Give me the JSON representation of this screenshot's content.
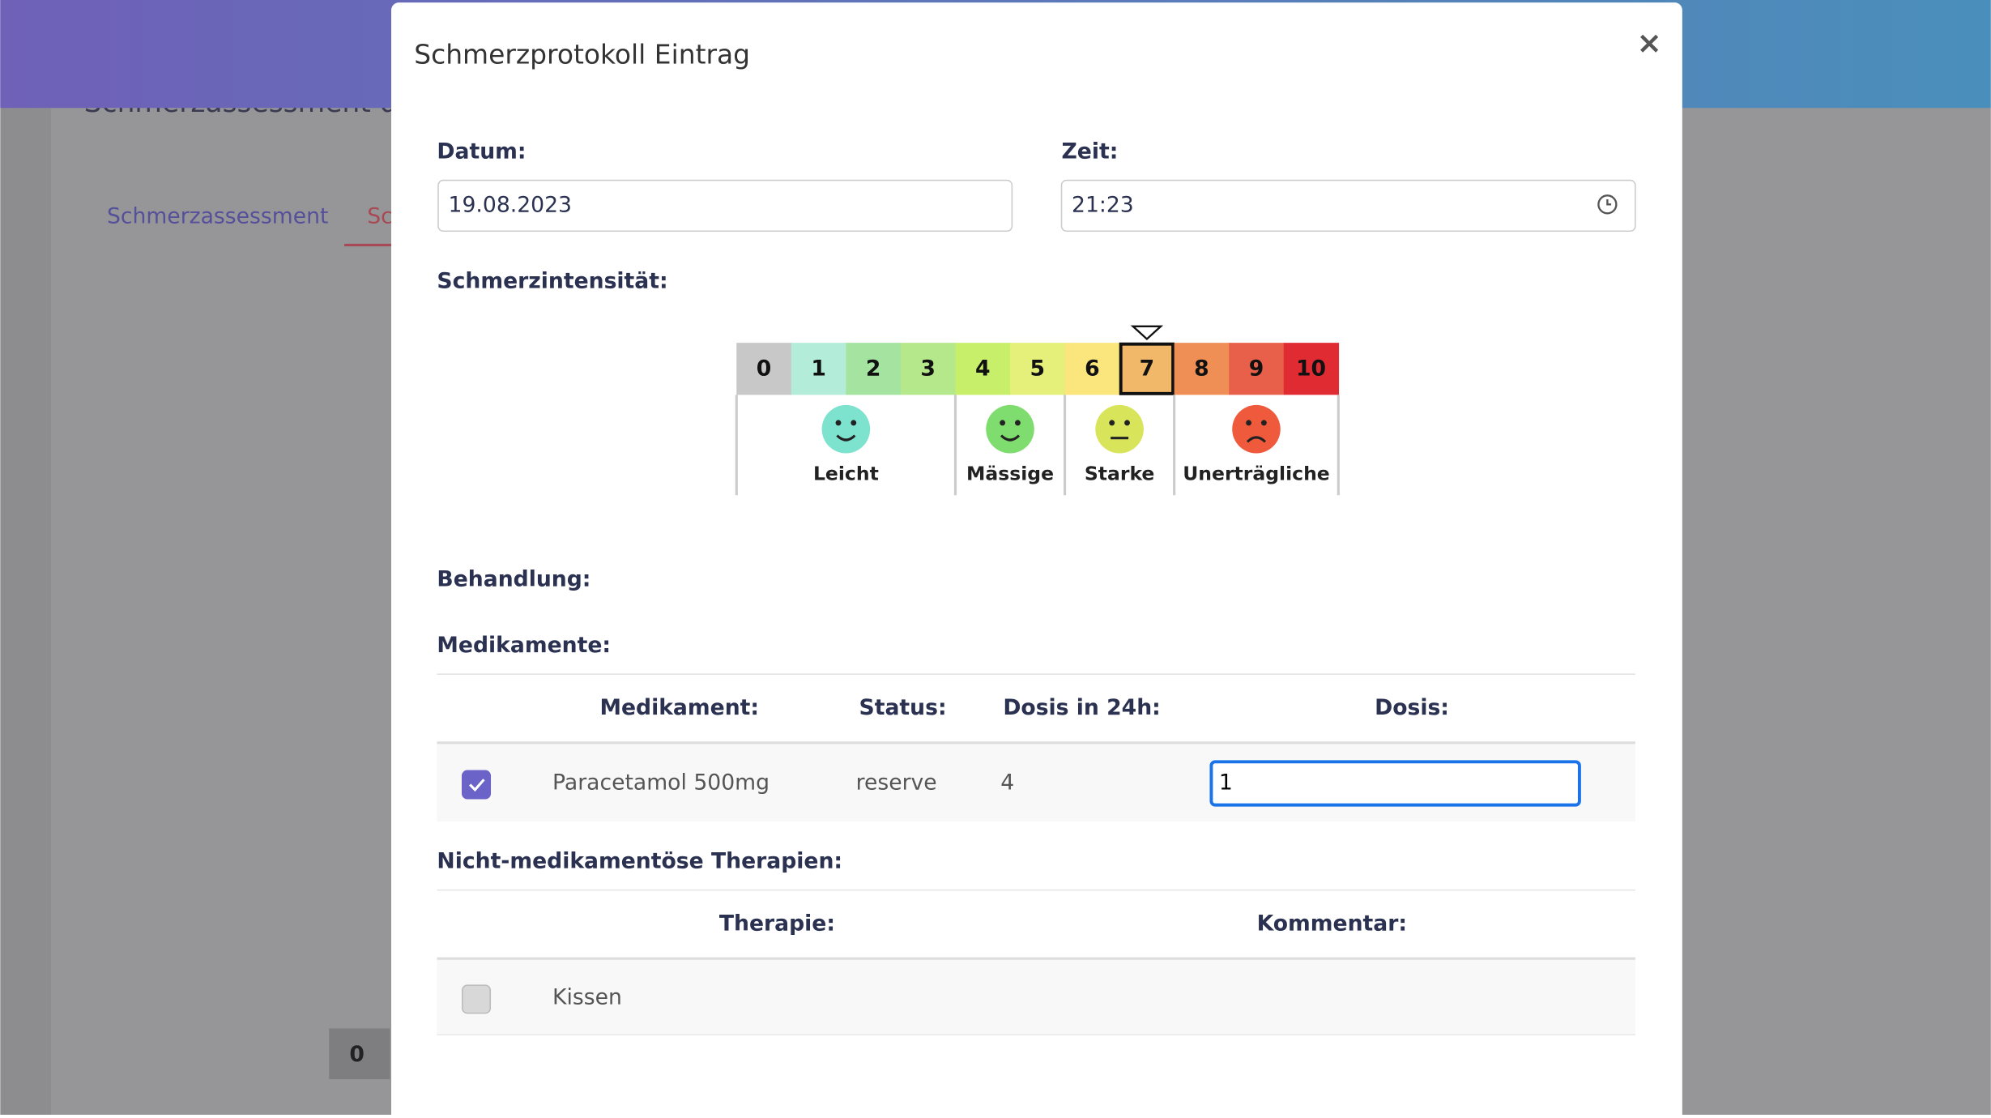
{
  "background": {
    "page_title": "Schmerzassessment d",
    "tabs": [
      "Schmerzassessment",
      "Sc"
    ],
    "table_cell": "0"
  },
  "modal": {
    "title": "Schmerzprotokoll Eintrag",
    "close": "×",
    "date_label": "Datum:",
    "date_value": "19.08.2023",
    "time_label": "Zeit:",
    "time_value": "21:23",
    "intensity_label": "Schmerzintensität:",
    "scale": {
      "values": [
        0,
        1,
        2,
        3,
        4,
        5,
        6,
        7,
        8,
        9,
        10
      ],
      "colors": [
        "#c8c8c8",
        "#b3ecd8",
        "#a4e3a0",
        "#b5e88a",
        "#c8ef6a",
        "#e4f07a",
        "#fbe57d",
        "#f2b86a",
        "#ef8f55",
        "#e8604a",
        "#e02b33"
      ],
      "selected": 7,
      "groups": [
        {
          "label": "Leicht",
          "color": "#7de3cf"
        },
        {
          "label": "Mässige",
          "color": "#7fdc6e"
        },
        {
          "label": "Starke",
          "color": "#d8e45a"
        },
        {
          "label": "Unerträgliche",
          "color": "#f05a3c"
        }
      ]
    },
    "treatment_label": "Behandlung:",
    "medications": {
      "label": "Medikamente:",
      "headers": [
        "Medikament:",
        "Status:",
        "Dosis in 24h:",
        "Dosis:"
      ],
      "rows": [
        {
          "name": "Paracetamol 500mg",
          "status": "reserve",
          "dose_24h": 4,
          "dose": "1",
          "checked": true
        }
      ]
    },
    "therapies": {
      "label": "Nicht-medikamentöse Therapien:",
      "headers": [
        "Therapie:",
        "Kommentar:"
      ],
      "rows": [
        {
          "name": "Kissen",
          "checked": false
        }
      ]
    }
  }
}
